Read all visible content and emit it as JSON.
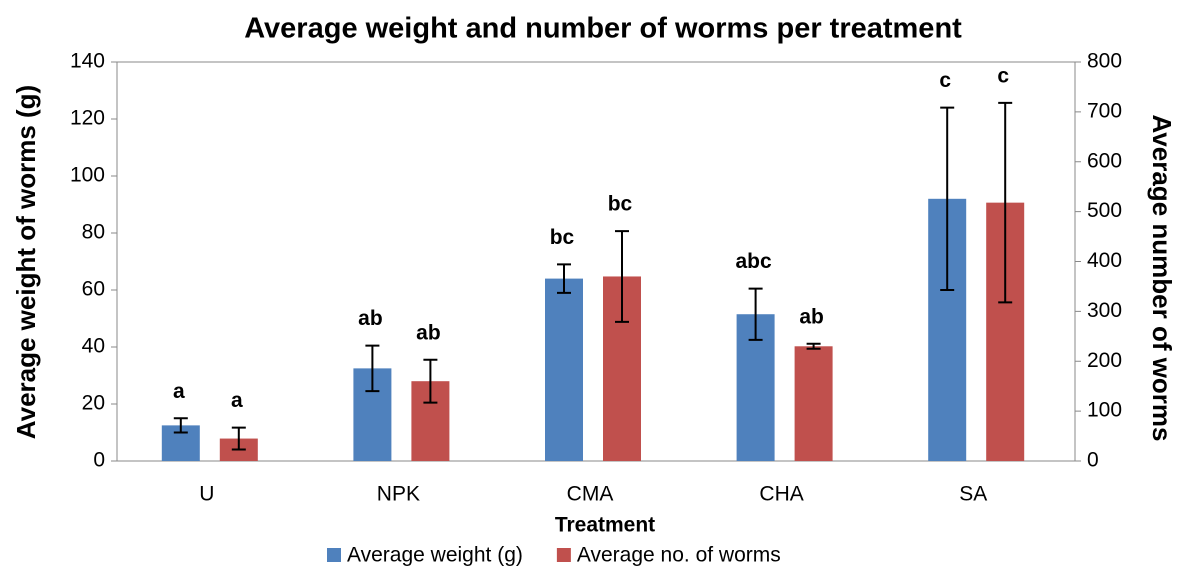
{
  "chart_data": {
    "type": "bar",
    "title": "Average weight and number of worms per treatment",
    "xlabel": "Treatment",
    "ylabel": "Average weight of worms (g)",
    "y2label": "Average number of worms",
    "categories": [
      "U",
      "NPK",
      "CMA",
      "CHA",
      "SA"
    ],
    "series": [
      {
        "name": "Average weight (g)",
        "color": "#4f81bd",
        "values": [
          12.5,
          32.5,
          64,
          51.5,
          92
        ],
        "errors": [
          2.5,
          8,
          5,
          9,
          32
        ],
        "letters": [
          "a",
          "ab",
          "bc",
          "abc",
          "c"
        ]
      },
      {
        "name": "Average no. of worms",
        "color": "#c0504d",
        "axis": "y2",
        "values": [
          45,
          160,
          370,
          230,
          518
        ],
        "errors": [
          22,
          43,
          91,
          5,
          200
        ],
        "letters": [
          "a",
          "ab",
          "bc",
          "ab",
          "c"
        ]
      }
    ],
    "ylim": [
      0,
      140
    ],
    "yticks": [
      0,
      20,
      40,
      60,
      80,
      100,
      120,
      140
    ],
    "y2lim": [
      0,
      800
    ],
    "y2ticks": [
      0,
      100,
      200,
      300,
      400,
      500,
      600,
      700,
      800
    ],
    "grid": false,
    "legend": "bottom"
  }
}
